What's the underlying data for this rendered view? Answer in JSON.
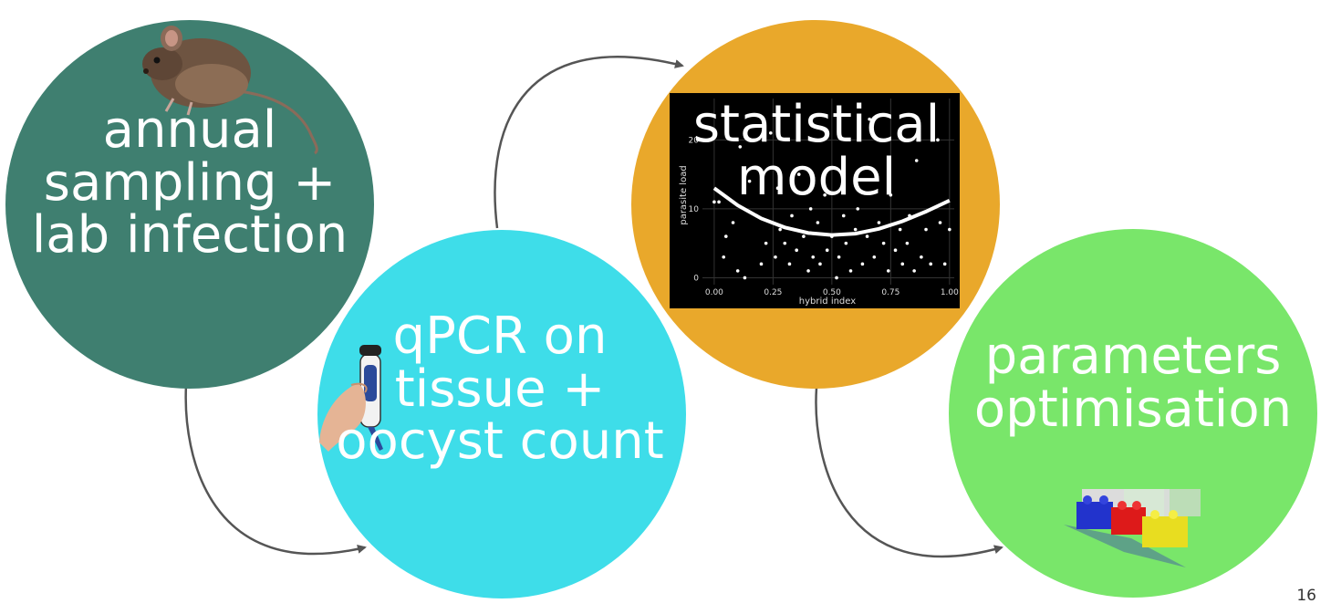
{
  "colors": {
    "circle1": "#3f7f70",
    "circle2": "#3edde9",
    "circle3": "#e9a82b",
    "circle4": "#79e66a",
    "arrow": "#555555",
    "plot_bg": "#000000"
  },
  "steps": [
    {
      "id": "sampling",
      "lines": [
        "annual",
        "sampling +",
        "lab infection"
      ],
      "icon": "mouse-icon"
    },
    {
      "id": "qpcr",
      "lines": [
        "qPCR on",
        "tissue +",
        "oocyst count"
      ],
      "icon": "pipette-hand-icon"
    },
    {
      "id": "model",
      "lines": [
        "statistical",
        "model"
      ],
      "icon": "scatter-plot-icon"
    },
    {
      "id": "optimisation",
      "lines": [
        "parameters",
        "optimisation"
      ],
      "icon": "lego-bricks-icon"
    }
  ],
  "chart_data": {
    "type": "scatter",
    "xlabel": "hybrid index",
    "ylabel": "parasite load",
    "xlim": [
      -0.05,
      1.02
    ],
    "ylim": [
      -1,
      26
    ],
    "x_ticks": [
      "0.00",
      "0.25",
      "0.50",
      "0.75",
      "1.00"
    ],
    "y_ticks": [
      "0",
      "10",
      "20"
    ],
    "grid": true,
    "points": [
      [
        0.0,
        11
      ],
      [
        0.02,
        11
      ],
      [
        0.05,
        6
      ],
      [
        0.08,
        8
      ],
      [
        0.1,
        1
      ],
      [
        0.11,
        19
      ],
      [
        0.13,
        0
      ],
      [
        0.15,
        14
      ],
      [
        0.18,
        9
      ],
      [
        0.2,
        2
      ],
      [
        0.22,
        5
      ],
      [
        0.24,
        21
      ],
      [
        0.26,
        3
      ],
      [
        0.27,
        13
      ],
      [
        0.28,
        7
      ],
      [
        0.3,
        5
      ],
      [
        0.32,
        2
      ],
      [
        0.33,
        9
      ],
      [
        0.35,
        4
      ],
      [
        0.36,
        15
      ],
      [
        0.38,
        6
      ],
      [
        0.4,
        1
      ],
      [
        0.41,
        10
      ],
      [
        0.42,
        3
      ],
      [
        0.44,
        8
      ],
      [
        0.45,
        2
      ],
      [
        0.47,
        12
      ],
      [
        0.48,
        4
      ],
      [
        0.5,
        6
      ],
      [
        0.52,
        0
      ],
      [
        0.53,
        3
      ],
      [
        0.55,
        9
      ],
      [
        0.56,
        5
      ],
      [
        0.58,
        1
      ],
      [
        0.6,
        7
      ],
      [
        0.61,
        10
      ],
      [
        0.63,
        2
      ],
      [
        0.65,
        6
      ],
      [
        0.66,
        23
      ],
      [
        0.68,
        3
      ],
      [
        0.7,
        8
      ],
      [
        0.72,
        5
      ],
      [
        0.74,
        1
      ],
      [
        0.75,
        12
      ],
      [
        0.77,
        4
      ],
      [
        0.79,
        7
      ],
      [
        0.8,
        2
      ],
      [
        0.82,
        5
      ],
      [
        0.83,
        9
      ],
      [
        0.85,
        1
      ],
      [
        0.86,
        17
      ],
      [
        0.88,
        3
      ],
      [
        0.9,
        7
      ],
      [
        0.92,
        2
      ],
      [
        0.93,
        24
      ],
      [
        0.95,
        20
      ],
      [
        0.96,
        8
      ],
      [
        0.98,
        2
      ],
      [
        1.0,
        7
      ],
      [
        0.04,
        3
      ]
    ],
    "fit_curve": [
      [
        0.0,
        13
      ],
      [
        0.1,
        10.5
      ],
      [
        0.2,
        8.6
      ],
      [
        0.3,
        7.3
      ],
      [
        0.4,
        6.5
      ],
      [
        0.5,
        6.2
      ],
      [
        0.6,
        6.4
      ],
      [
        0.7,
        7.1
      ],
      [
        0.8,
        8.2
      ],
      [
        0.9,
        9.6
      ],
      [
        1.0,
        11.2
      ]
    ]
  },
  "page_number": "16"
}
